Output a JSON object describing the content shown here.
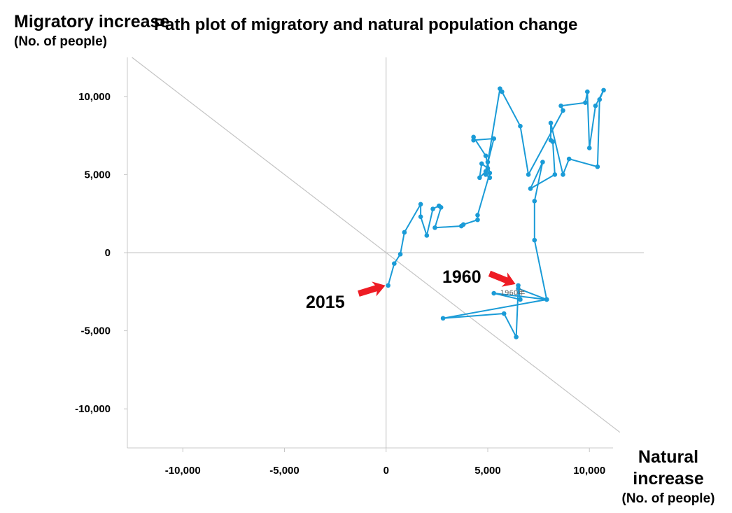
{
  "chart_data": {
    "type": "line",
    "title": "Path plot of migratory and natural population change",
    "ylabel": "Migratory increase",
    "ylabel_unit": "(No. of people)",
    "xlabel": "Natural increase",
    "xlabel_unit": "(No. of people)",
    "xlim": [
      -12900,
      11300
    ],
    "ylim": [
      -12500,
      12500
    ],
    "x_ticks": [
      {
        "value": -10000,
        "label": "-10,000"
      },
      {
        "value": -5000,
        "label": "-5,000"
      },
      {
        "value": 0,
        "label": "0"
      },
      {
        "value": 5000,
        "label": "5,000"
      },
      {
        "value": 10000,
        "label": "10,000"
      }
    ],
    "y_ticks": [
      {
        "value": 10000,
        "label": "10,000"
      },
      {
        "value": 5000,
        "label": "5,000"
      },
      {
        "value": 0,
        "label": "0"
      },
      {
        "value": -5000,
        "label": "-5,000"
      },
      {
        "value": -10000,
        "label": "-10,000"
      }
    ],
    "reference_line": {
      "from": [
        -12500,
        12500
      ],
      "to": [
        11500,
        -11500
      ]
    },
    "grid": false,
    "legend": "none",
    "series_color": "#1a9bd7",
    "arrow_color": "#ee1c24",
    "series": [
      {
        "points": [
          [
            6500,
            -2100
          ],
          [
            6600,
            -3000
          ],
          [
            5300,
            -2600
          ],
          [
            7900,
            -3000
          ],
          [
            2800,
            -4200
          ],
          [
            5800,
            -3900
          ],
          [
            6400,
            -5400
          ],
          [
            6500,
            -2300
          ],
          [
            7900,
            -3000
          ],
          [
            7300,
            800
          ],
          [
            7300,
            3300
          ],
          [
            7700,
            5800
          ],
          [
            7100,
            4100
          ],
          [
            8300,
            5000
          ],
          [
            8200,
            7100
          ],
          [
            8100,
            7200
          ],
          [
            8100,
            8300
          ],
          [
            8700,
            5000
          ],
          [
            9000,
            6000
          ],
          [
            10400,
            5500
          ],
          [
            10500,
            9800
          ],
          [
            10700,
            10400
          ],
          [
            10300,
            9400
          ],
          [
            10000,
            6700
          ],
          [
            9900,
            10300
          ],
          [
            9800,
            9600
          ],
          [
            8600,
            9400
          ],
          [
            8700,
            9100
          ],
          [
            7000,
            5000
          ],
          [
            6600,
            8100
          ],
          [
            5700,
            10300
          ],
          [
            5600,
            10500
          ],
          [
            4900,
            5000
          ],
          [
            5100,
            4800
          ],
          [
            5000,
            5800
          ],
          [
            5000,
            5400
          ],
          [
            4700,
            5700
          ],
          [
            4600,
            4800
          ],
          [
            4900,
            5200
          ],
          [
            5300,
            7300
          ],
          [
            4300,
            7200
          ],
          [
            4300,
            7400
          ],
          [
            4900,
            6200
          ],
          [
            5100,
            5100
          ],
          [
            4500,
            2400
          ],
          [
            4500,
            2100
          ],
          [
            3800,
            1800
          ],
          [
            3700,
            1700
          ],
          [
            2400,
            1600
          ],
          [
            2700,
            2900
          ],
          [
            2600,
            3000
          ],
          [
            2300,
            2800
          ],
          [
            2000,
            1100
          ],
          [
            1700,
            2300
          ],
          [
            1700,
            3100
          ],
          [
            900,
            1300
          ],
          [
            700,
            -100
          ],
          [
            400,
            -700
          ],
          [
            100,
            -2100
          ]
        ]
      }
    ],
    "annotations": [
      {
        "text": "1960",
        "point": [
          6500,
          -2100
        ]
      },
      {
        "text": "2015",
        "point": [
          100,
          -2100
        ]
      },
      {
        "text": "1960年",
        "point": [
          6300,
          -2300
        ]
      }
    ]
  }
}
